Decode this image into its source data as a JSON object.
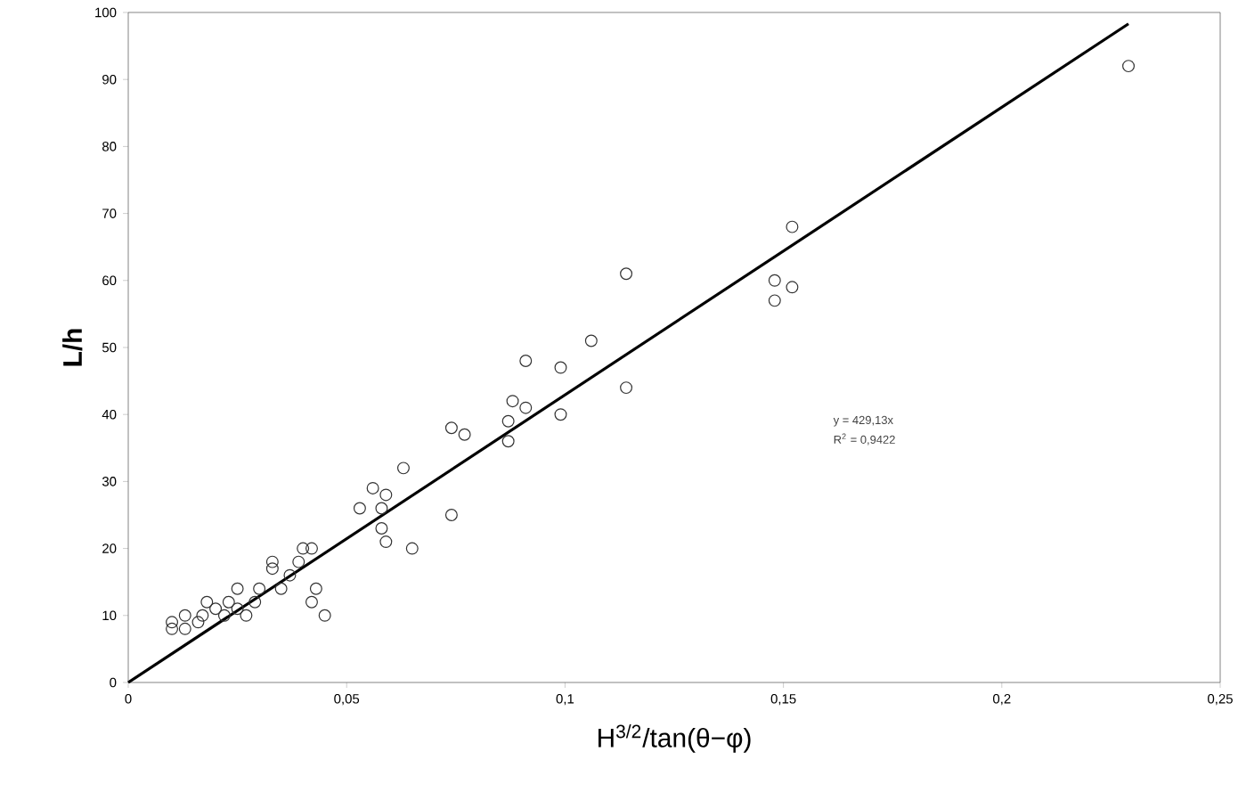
{
  "chart_data": {
    "type": "scatter",
    "xlabel": "H$^{3/2}$/tan(θ−φ)",
    "ylabel": "L/h",
    "series": [
      {
        "color": "#333333",
        "marker": "circle",
        "x": [
          0.01,
          0.01,
          0.013,
          0.013,
          0.016,
          0.017,
          0.018,
          0.02,
          0.022,
          0.023,
          0.025,
          0.025,
          0.027,
          0.029,
          0.03,
          0.033,
          0.033,
          0.035,
          0.037,
          0.039,
          0.04,
          0.042,
          0.042,
          0.043,
          0.045,
          0.053,
          0.056,
          0.058,
          0.058,
          0.059,
          0.059,
          0.063,
          0.065,
          0.074,
          0.074,
          0.077,
          0.087,
          0.087,
          0.088,
          0.091,
          0.091,
          0.099,
          0.099,
          0.106,
          0.114,
          0.114,
          0.148,
          0.148,
          0.152,
          0.152,
          0.229
        ],
        "values": [
          8,
          9,
          8,
          10,
          9,
          10,
          12,
          11,
          10,
          12,
          14,
          11,
          10,
          12,
          14,
          17,
          18,
          14,
          16,
          18,
          20,
          20,
          12,
          14,
          10,
          26,
          29,
          23,
          26,
          28,
          21,
          32,
          20,
          38,
          25,
          37,
          36,
          39,
          42,
          48,
          41,
          47,
          40,
          51,
          61,
          44,
          60,
          57,
          68,
          59,
          92
        ]
      },
      {
        "type": "line",
        "marker": "none",
        "color": "#000000",
        "x": [
          0,
          0.229
        ],
        "values": [
          0,
          98.3
        ]
      }
    ],
    "grid": false,
    "annotations": [
      "y = 429,13x",
      "R$^{2}$ = 0,9422"
    ],
    "xlim": [
      0,
      0.25
    ],
    "ylim": [
      0,
      100
    ],
    "xticks": [
      0,
      {
        "value": 0.05,
        "label": "0,05"
      },
      {
        "value": 0.1,
        "label": "0,1"
      },
      {
        "value": 0.15,
        "label": "0,15"
      },
      {
        "value": 0.2,
        "label": "0,2"
      },
      {
        "value": 0.25,
        "label": "0,25"
      }
    ],
    "yticks": [
      0,
      10,
      20,
      30,
      40,
      50,
      60,
      70,
      80,
      90,
      100
    ]
  }
}
